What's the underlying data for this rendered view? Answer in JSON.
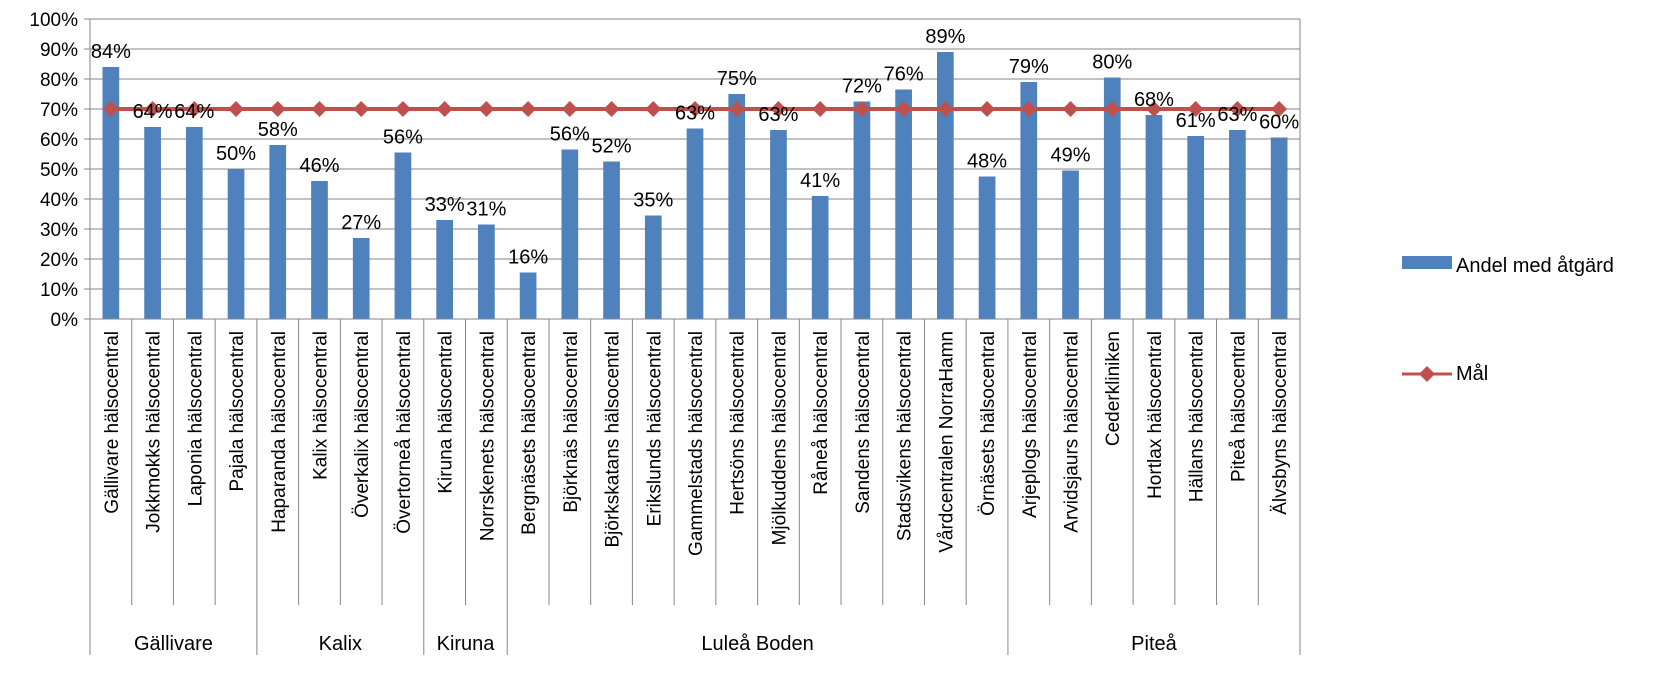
{
  "chart_data": {
    "type": "bar",
    "categories": [
      "Gällivare hälsocentral",
      "Jokkmokks hälsocentral",
      "Laponia hälsocentral",
      "Pajala hälsocentral",
      "Haparanda hälsocentral",
      "Kalix hälsocentral",
      "Överkalix hälsocentral",
      "Övertorneå hälsocentral",
      "Kiruna hälsocentral",
      "Norrskenets hälsocentral",
      "Bergnäsets hälsocentral",
      "Björknäs hälsocentral",
      "Björkskatans hälsocentral",
      "Erikslunds hälsocentral",
      "Gammelstads hälsocentral",
      "Hertsöns hälsocentral",
      "Mjölkuddens hälsocentral",
      "Råneå hälsocentral",
      "Sandens hälsocentral",
      "Stadsvikens hälsocentral",
      "Vårdcentralen NorraHamn",
      "Örnäsets hälsocentral",
      "Arjeplogs hälsocentral",
      "Arvidsjaurs hälsocentral",
      "Cederkliniken",
      "Hortlax hälsocentral",
      "Hällans hälsocentral",
      "Piteå hälsocentral",
      "Älvsbyns hälsocentral"
    ],
    "groups": [
      {
        "name": "Gällivare",
        "count": 4
      },
      {
        "name": "Kalix",
        "count": 4
      },
      {
        "name": "Kiruna",
        "count": 2
      },
      {
        "name": "Luleå Boden",
        "count": 12
      },
      {
        "name": "Piteå",
        "count": 7
      }
    ],
    "series": [
      {
        "name": "Andel med åtgärd",
        "kind": "bar",
        "color": "#4F81BD",
        "values": [
          0.84,
          0.64,
          0.64,
          0.5,
          0.58,
          0.46,
          0.27,
          0.555,
          0.33,
          0.315,
          0.155,
          0.565,
          0.525,
          0.345,
          0.635,
          0.75,
          0.63,
          0.41,
          0.725,
          0.765,
          0.89,
          0.475,
          0.79,
          0.495,
          0.805,
          0.68,
          0.61,
          0.63,
          0.605
        ],
        "labels": [
          "84%",
          "64%",
          "64%",
          "50%",
          "58%",
          "46%",
          "27%",
          "56%",
          "33%",
          "31%",
          "16%",
          "56%",
          "52%",
          "35%",
          "63%",
          "75%",
          "63%",
          "41%",
          "72%",
          "76%",
          "89%",
          "48%",
          "79%",
          "49%",
          "80%",
          "68%",
          "61%",
          "63%",
          "60%"
        ]
      },
      {
        "name": "Mål",
        "kind": "line",
        "color": "#C0504D",
        "marker": "diamond",
        "values": [
          0.7,
          0.7,
          0.7,
          0.7,
          0.7,
          0.7,
          0.7,
          0.7,
          0.7,
          0.7,
          0.7,
          0.7,
          0.7,
          0.7,
          0.7,
          0.7,
          0.7,
          0.7,
          0.7,
          0.7,
          0.7,
          0.7,
          0.7,
          0.7,
          0.7,
          0.7,
          0.7,
          0.7,
          0.7
        ]
      }
    ],
    "y_ticks": [
      "0%",
      "10%",
      "20%",
      "30%",
      "40%",
      "50%",
      "60%",
      "70%",
      "80%",
      "90%",
      "100%"
    ],
    "ylim": [
      0,
      1
    ],
    "grid": true,
    "legend_position": "right"
  },
  "legend": {
    "bar_label": "Andel med åtgärd",
    "line_label": "Mål"
  }
}
